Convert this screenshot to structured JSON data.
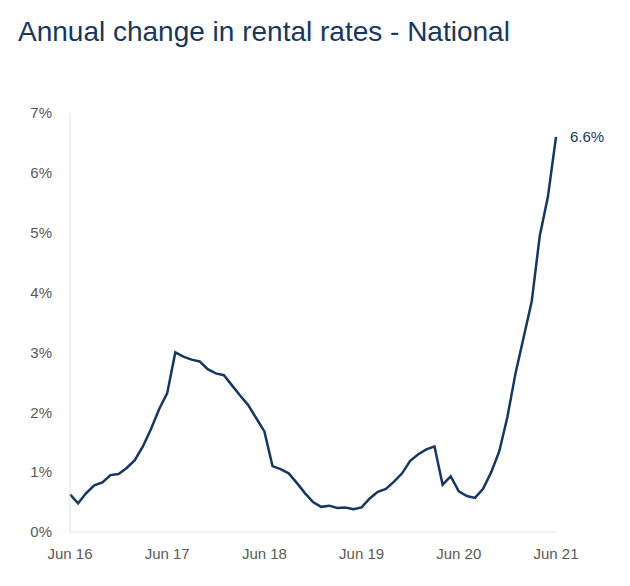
{
  "chart_data": {
    "type": "line",
    "title": "Annual change in rental rates - National",
    "categories": [
      "Jun 16",
      null,
      null,
      null,
      null,
      null,
      null,
      null,
      null,
      null,
      null,
      null,
      "Jun 17",
      null,
      null,
      null,
      null,
      null,
      null,
      null,
      null,
      null,
      null,
      null,
      "Jun 18",
      null,
      null,
      null,
      null,
      null,
      null,
      null,
      null,
      null,
      null,
      null,
      "Jun 19",
      null,
      null,
      null,
      null,
      null,
      null,
      null,
      null,
      null,
      null,
      null,
      "Jun 20",
      null,
      null,
      null,
      null,
      null,
      null,
      null,
      null,
      null,
      null,
      null,
      "Jun 21"
    ],
    "series": [
      {
        "name": "National",
        "color": "#17375e",
        "values": [
          0.63,
          0.48,
          0.65,
          0.78,
          0.83,
          0.95,
          0.97,
          1.07,
          1.2,
          1.43,
          1.72,
          2.05,
          2.32,
          3.0,
          2.93,
          2.88,
          2.85,
          2.72,
          2.65,
          2.62,
          2.45,
          2.28,
          2.12,
          1.9,
          1.68,
          1.1,
          1.05,
          0.98,
          0.82,
          0.65,
          0.5,
          0.42,
          0.44,
          0.4,
          0.41,
          0.38,
          0.41,
          0.56,
          0.67,
          0.72,
          0.84,
          0.98,
          1.19,
          1.3,
          1.38,
          1.43,
          0.79,
          0.93,
          0.68,
          0.6,
          0.57,
          0.72,
          1.0,
          1.35,
          1.92,
          2.65,
          3.25,
          3.85,
          4.95,
          5.6,
          6.6
        ],
        "value_labels": [
          null,
          null,
          null,
          null,
          null,
          null,
          null,
          null,
          null,
          null,
          null,
          null,
          null,
          null,
          null,
          null,
          null,
          null,
          null,
          null,
          null,
          null,
          null,
          null,
          null,
          null,
          null,
          null,
          null,
          null,
          null,
          null,
          null,
          null,
          null,
          null,
          null,
          null,
          null,
          null,
          null,
          null,
          null,
          null,
          null,
          null,
          null,
          null,
          null,
          null,
          null,
          null,
          null,
          null,
          null,
          null,
          null,
          null,
          null,
          null,
          "6.6%"
        ]
      }
    ],
    "ylim": [
      0,
      7
    ],
    "yticks": [
      {
        "value": 0,
        "label": "0%"
      },
      {
        "value": 1,
        "label": "1%"
      },
      {
        "value": 2,
        "label": "2%"
      },
      {
        "value": 3,
        "label": "3%"
      },
      {
        "value": 4,
        "label": "4%"
      },
      {
        "value": 5,
        "label": "5%"
      },
      {
        "value": 6,
        "label": "6%"
      },
      {
        "value": 7,
        "label": "7%"
      }
    ],
    "grid": false,
    "legend": false,
    "data_labels": true
  }
}
